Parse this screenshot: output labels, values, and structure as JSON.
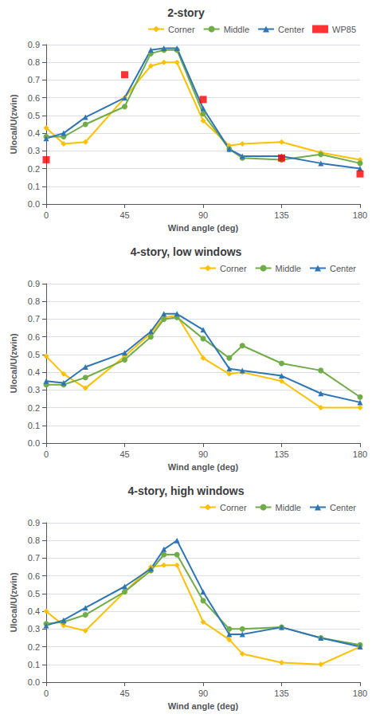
{
  "chart_data": [
    {
      "type": "line",
      "title": "2-story",
      "x_label": "Wind angle (deg)",
      "y_label": "Ulocal/U(zwin)",
      "xlim": [
        0,
        180
      ],
      "xticks": [
        0,
        45,
        90,
        135,
        180
      ],
      "ylim": [
        0,
        0.9
      ],
      "yticks": [
        {
          "value": 0,
          "label": "0.0"
        },
        0.1,
        0.2,
        0.3,
        0.4,
        0.5,
        0.6,
        0.7,
        0.8,
        0.9
      ],
      "grid": true,
      "legend": "upper right",
      "series": [
        {
          "name": "Corner",
          "color": "#FFC000",
          "marker": "diamond",
          "x": [
            0,
            10,
            22.5,
            45,
            60,
            67.5,
            75,
            90,
            105,
            112.5,
            135,
            157.5,
            180
          ],
          "values": [
            0.43,
            0.34,
            0.35,
            0.6,
            0.78,
            0.8,
            0.8,
            0.47,
            0.33,
            0.34,
            0.35,
            0.29,
            0.25
          ]
        },
        {
          "name": "Middle",
          "color": "#70AD47",
          "marker": "circle",
          "x": [
            0,
            10,
            22.5,
            45,
            60,
            67.5,
            75,
            90,
            105,
            112.5,
            135,
            157.5,
            180
          ],
          "values": [
            0.38,
            0.38,
            0.45,
            0.55,
            0.85,
            0.87,
            0.87,
            0.51,
            0.31,
            0.26,
            0.25,
            0.28,
            0.23
          ]
        },
        {
          "name": "Center",
          "color": "#2E75B6",
          "marker": "triangle",
          "x": [
            0,
            10,
            22.5,
            45,
            60,
            67.5,
            75,
            90,
            105,
            112.5,
            135,
            157.5,
            180
          ],
          "values": [
            0.37,
            0.4,
            0.49,
            0.6,
            0.87,
            0.88,
            0.88,
            0.54,
            0.31,
            0.27,
            0.27,
            0.23,
            0.2
          ]
        },
        {
          "name": "WP85",
          "type": "scatter",
          "color": "#FF0000",
          "marker": "square",
          "x": [
            0,
            45,
            90,
            135,
            180
          ],
          "values": [
            0.25,
            0.73,
            0.59,
            0.26,
            0.17
          ]
        }
      ]
    },
    {
      "type": "line",
      "title": "4-story, low windows",
      "x_label": "Wind angle (deg)",
      "y_label": "Ulocal/U(zwin)",
      "xlim": [
        0,
        180
      ],
      "xticks": [
        0,
        45,
        90,
        135,
        180
      ],
      "ylim": [
        0,
        0.9
      ],
      "yticks": [
        {
          "value": 0,
          "label": "0.0"
        },
        0.1,
        0.2,
        0.3,
        0.4,
        0.5,
        0.6,
        0.7,
        0.8,
        0.9
      ],
      "grid": true,
      "legend": "upper right",
      "series": [
        {
          "name": "Corner",
          "color": "#FFC000",
          "marker": "diamond",
          "x": [
            0,
            10,
            22.5,
            45,
            60,
            67.5,
            75,
            90,
            105,
            112.5,
            135,
            157.5,
            180
          ],
          "values": [
            0.49,
            0.39,
            0.31,
            0.49,
            0.62,
            0.71,
            0.72,
            0.48,
            0.39,
            0.4,
            0.35,
            0.2,
            0.2
          ]
        },
        {
          "name": "Middle",
          "color": "#70AD47",
          "marker": "circle",
          "x": [
            0,
            10,
            22.5,
            45,
            60,
            67.5,
            75,
            90,
            105,
            112.5,
            135,
            157.5,
            180
          ],
          "values": [
            0.33,
            0.33,
            0.37,
            0.47,
            0.6,
            0.7,
            0.71,
            0.59,
            0.48,
            0.55,
            0.45,
            0.41,
            0.26
          ]
        },
        {
          "name": "Center",
          "color": "#2E75B6",
          "marker": "triangle",
          "x": [
            0,
            10,
            22.5,
            45,
            60,
            67.5,
            75,
            90,
            105,
            112.5,
            135,
            157.5,
            180
          ],
          "values": [
            0.35,
            0.34,
            0.43,
            0.51,
            0.63,
            0.73,
            0.73,
            0.64,
            0.42,
            0.41,
            0.38,
            0.28,
            0.23
          ]
        }
      ]
    },
    {
      "type": "line",
      "title": "4-story, high windows",
      "x_label": "Wind angle (deg)",
      "y_label": "Ulocal/U(zwin)",
      "xlim": [
        0,
        180
      ],
      "xticks": [
        0,
        45,
        90,
        135,
        180
      ],
      "ylim": [
        0,
        0.9
      ],
      "yticks": [
        {
          "value": 0,
          "label": "0.0"
        },
        0.1,
        0.2,
        0.3,
        0.4,
        0.5,
        0.6,
        0.7,
        0.8,
        0.9
      ],
      "grid": true,
      "legend": "upper right",
      "series": [
        {
          "name": "Corner",
          "color": "#FFC000",
          "marker": "diamond",
          "x": [
            0,
            10,
            22.5,
            45,
            60,
            67.5,
            75,
            90,
            105,
            112.5,
            135,
            157.5,
            180
          ],
          "values": [
            0.4,
            0.32,
            0.29,
            0.51,
            0.65,
            0.66,
            0.66,
            0.34,
            0.24,
            0.16,
            0.11,
            0.1,
            0.2
          ]
        },
        {
          "name": "Middle",
          "color": "#70AD47",
          "marker": "circle",
          "x": [
            0,
            10,
            22.5,
            45,
            60,
            67.5,
            75,
            90,
            105,
            112.5,
            135,
            157.5,
            180
          ],
          "values": [
            0.33,
            0.34,
            0.38,
            0.51,
            0.63,
            0.72,
            0.72,
            0.46,
            0.3,
            0.3,
            0.31,
            0.25,
            0.21
          ]
        },
        {
          "name": "Center",
          "color": "#2E75B6",
          "marker": "triangle",
          "x": [
            0,
            10,
            22.5,
            45,
            60,
            67.5,
            75,
            90,
            105,
            112.5,
            135,
            157.5,
            180
          ],
          "values": [
            0.32,
            0.35,
            0.42,
            0.54,
            0.64,
            0.75,
            0.8,
            0.51,
            0.27,
            0.27,
            0.31,
            0.25,
            0.2
          ]
        }
      ]
    }
  ]
}
